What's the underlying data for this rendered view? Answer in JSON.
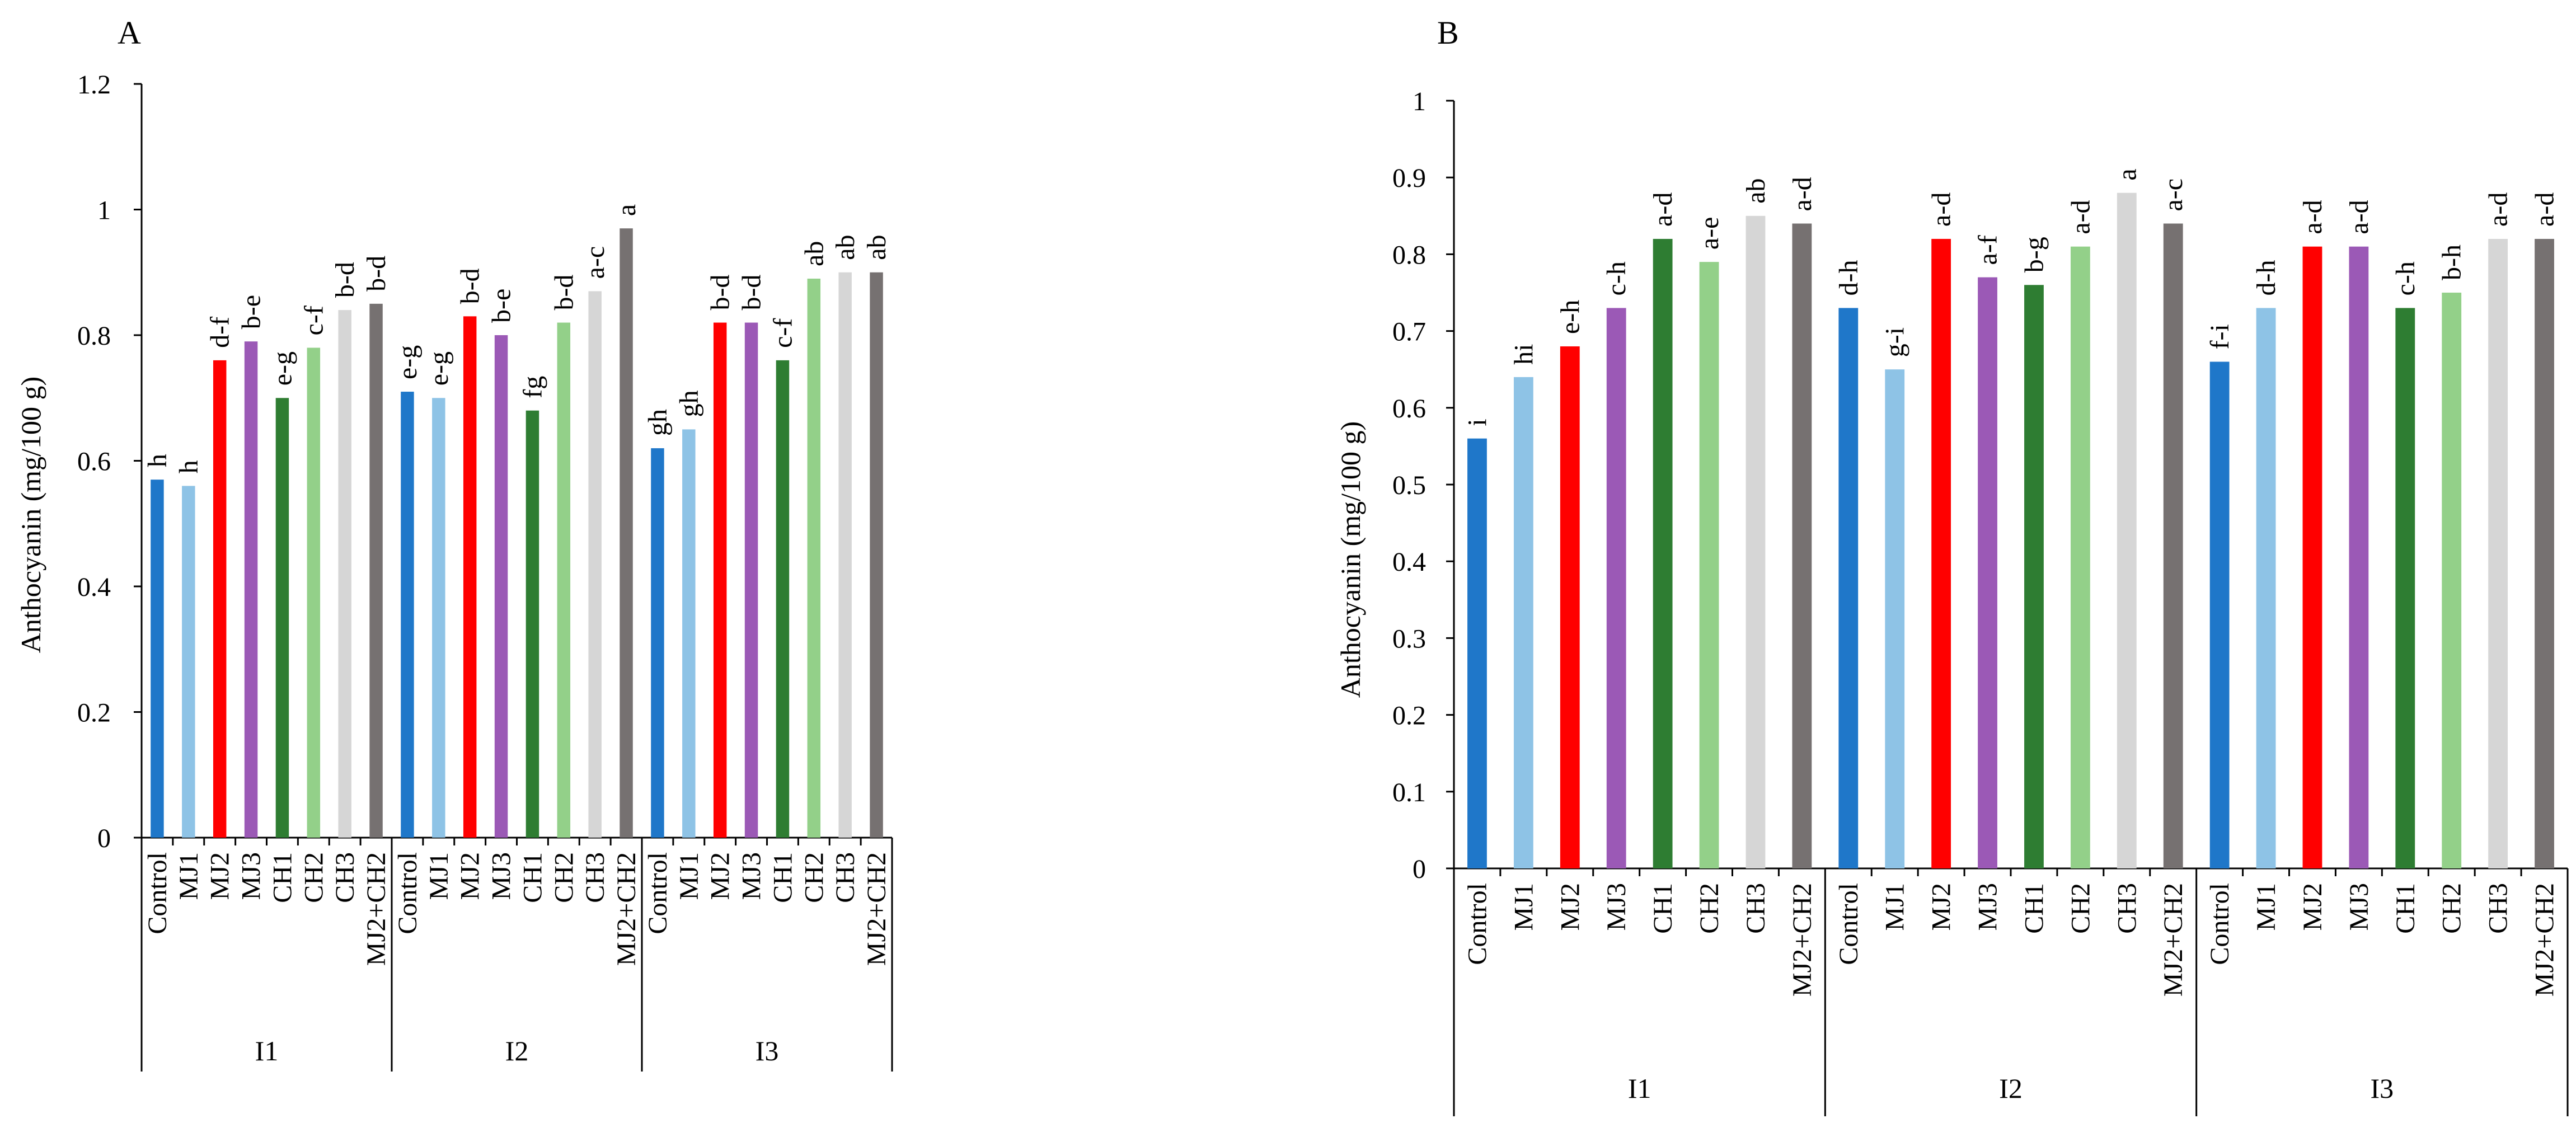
{
  "groups": [
    "I1",
    "I2",
    "I3"
  ],
  "treatments": [
    "Control",
    "MJ1",
    "MJ2",
    "MJ3",
    "CH1",
    "CH2",
    "CH3",
    "MJ2+CH2"
  ],
  "colors": {
    "Control": "#1f77c9",
    "MJ1": "#8ec3e6",
    "MJ2": "#ff0000",
    "MJ3": "#9b59b6",
    "CH1": "#2e7d32",
    "CH2": "#93d089",
    "CH3": "#d6d6d6",
    "MJ2+CH2": "#767171"
  },
  "chart_data": [
    {
      "panel": "A",
      "type": "bar",
      "ylabel": "Anthocyanin (mg/100 g)",
      "ylim": [
        0,
        1.2
      ],
      "yticks": [
        "0",
        "0.2",
        "0.4",
        "0.6",
        "0.8",
        "1",
        "1.2"
      ],
      "series": [
        {
          "group": "I1",
          "values": [
            0.57,
            0.56,
            0.76,
            0.79,
            0.7,
            0.78,
            0.84,
            0.85
          ],
          "labels": [
            "h",
            "h",
            "d-f",
            "b-e",
            "e-g",
            "c-f",
            "b-d",
            "b-d"
          ]
        },
        {
          "group": "I2",
          "values": [
            0.71,
            0.7,
            0.83,
            0.8,
            0.68,
            0.82,
            0.87,
            0.97
          ],
          "labels": [
            "e-g",
            "e-g",
            "b-d",
            "b-e",
            "fg",
            "b-d",
            "a-c",
            "a"
          ]
        },
        {
          "group": "I3",
          "values": [
            0.62,
            0.65,
            0.82,
            0.82,
            0.76,
            0.89,
            0.9,
            0.9
          ],
          "labels": [
            "gh",
            "gh",
            "b-d",
            "b-d",
            "c-f",
            "ab",
            "ab",
            "ab"
          ]
        }
      ]
    },
    {
      "panel": "B",
      "type": "bar",
      "ylabel": "Anthocyanin (mg/100 g)",
      "ylim": [
        0,
        1
      ],
      "yticks": [
        "0",
        "0.1",
        "0.2",
        "0.3",
        "0.4",
        "0.5",
        "0.6",
        "0.7",
        "0.8",
        "0.9",
        "1"
      ],
      "series": [
        {
          "group": "I1",
          "values": [
            0.56,
            0.64,
            0.68,
            0.73,
            0.82,
            0.79,
            0.85,
            0.84
          ],
          "labels": [
            "i",
            "hi",
            "e-h",
            "c-h",
            "a-d",
            "a-e",
            "ab",
            "a-d"
          ]
        },
        {
          "group": "I2",
          "values": [
            0.73,
            0.65,
            0.82,
            0.77,
            0.76,
            0.81,
            0.88,
            0.84
          ],
          "labels": [
            "d-h",
            "g-i",
            "a-d",
            "a-f",
            "b-g",
            "a-d",
            "a",
            "a-c"
          ]
        },
        {
          "group": "I3",
          "values": [
            0.66,
            0.73,
            0.81,
            0.81,
            0.73,
            0.75,
            0.82,
            0.82
          ],
          "labels": [
            "f-i",
            "d-h",
            "a-d",
            "a-d",
            "c-h",
            "b-h",
            "a-d",
            "a-d"
          ]
        }
      ]
    }
  ]
}
